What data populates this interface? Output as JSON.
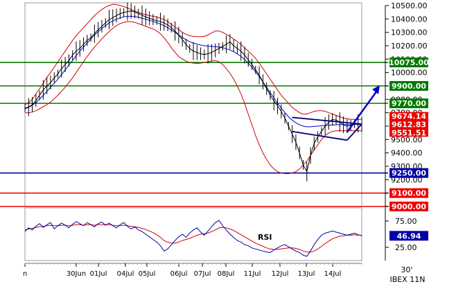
{
  "chart_data": [
    {
      "type": "line",
      "title": "",
      "subtitle": "",
      "instrument_caption": "IBEX 11N",
      "timeframe_caption": "30'",
      "ylim": [
        9000,
        10500
      ],
      "y_ticks": [
        "10500.00",
        "10400.00",
        "10300.00",
        "10200.00",
        "10100.00",
        "10000.00",
        "9900.00",
        "9800.00",
        "9700.00",
        "9600.00",
        "9500.00",
        "9400.00",
        "9300.00",
        "9200.00",
        "9100.00",
        "9000.00"
      ],
      "x_ticks": [
        "n",
        "30Jun",
        "01Jul",
        "04Jul",
        "05Jul",
        "06Jul",
        "07Jul",
        "08Jul",
        "11Jul",
        "12Jul",
        "13Jul",
        "14Jul"
      ],
      "price": [
        9735,
        9742,
        9760,
        9790,
        9830,
        9870,
        9900,
        9925,
        9960,
        9990,
        10030,
        10060,
        10090,
        10130,
        10160,
        10180,
        10210,
        10240,
        10260,
        10290,
        10320,
        10345,
        10370,
        10395,
        10410,
        10425,
        10440,
        10448,
        10455,
        10460,
        10452,
        10440,
        10428,
        10415,
        10405,
        10395,
        10388,
        10380,
        10370,
        10355,
        10335,
        10310,
        10280,
        10245,
        10210,
        10180,
        10160,
        10150,
        10140,
        10135,
        10140,
        10150,
        10165,
        10180,
        10195,
        10210,
        10230,
        10200,
        10180,
        10160,
        10130,
        10095,
        10060,
        10020,
        9980,
        9930,
        9880,
        9830,
        9790,
        9750,
        9710,
        9660,
        9600,
        9540,
        9480,
        9400,
        9310,
        9260,
        9380,
        9470,
        9520,
        9560,
        9600,
        9630,
        9650,
        9645,
        9630,
        9610,
        9600,
        9605,
        9615,
        9620,
        9612
      ],
      "upper_band": [
        9760,
        9775,
        9800,
        9840,
        9880,
        9920,
        9965,
        10000,
        10040,
        10080,
        10120,
        10160,
        10200,
        10240,
        10275,
        10305,
        10335,
        10365,
        10395,
        10425,
        10450,
        10470,
        10488,
        10500,
        10510,
        10508,
        10500,
        10492,
        10482,
        10470,
        10458,
        10448,
        10440,
        10432,
        10425,
        10420,
        10415,
        10405,
        10395,
        10380,
        10360,
        10340,
        10320,
        10300,
        10285,
        10275,
        10270,
        10268,
        10268,
        10270,
        10280,
        10295,
        10310,
        10310,
        10300,
        10285,
        10270,
        10250,
        10230,
        10210,
        10185,
        10160,
        10135,
        10105,
        10070,
        10030,
        9990,
        9950,
        9910,
        9870,
        9830,
        9800,
        9770,
        9740,
        9720,
        9700,
        9690,
        9690,
        9700,
        9710,
        9715,
        9715,
        9710,
        9700,
        9690,
        9680,
        9670,
        9660,
        9655,
        9650,
        9650,
        9650,
        9650
      ],
      "lower_band": [
        9700,
        9700,
        9705,
        9715,
        9730,
        9745,
        9760,
        9780,
        9805,
        9830,
        9860,
        9890,
        9925,
        9960,
        10000,
        10040,
        10080,
        10120,
        10155,
        10190,
        10220,
        10250,
        10280,
        10305,
        10330,
        10350,
        10365,
        10375,
        10380,
        10380,
        10375,
        10365,
        10355,
        10345,
        10335,
        10325,
        10310,
        10290,
        10260,
        10225,
        10185,
        10150,
        10120,
        10100,
        10085,
        10075,
        10070,
        10068,
        10070,
        10075,
        10080,
        10085,
        10090,
        10080,
        10060,
        10030,
        9995,
        9950,
        9900,
        9840,
        9770,
        9690,
        9610,
        9530,
        9460,
        9400,
        9350,
        9310,
        9280,
        9260,
        9250,
        9245,
        9245,
        9250,
        9260,
        9280,
        9310,
        9340,
        9380,
        9420,
        9460,
        9500,
        9530,
        9550,
        9560,
        9565,
        9565,
        9565,
        9565,
        9565,
        9565,
        9565,
        9565
      ],
      "moving_average": [
        9730,
        9740,
        9755,
        9775,
        9800,
        9830,
        9860,
        9890,
        9920,
        9950,
        9985,
        10020,
        10055,
        10090,
        10125,
        10160,
        10190,
        10220,
        10250,
        10280,
        10305,
        10330,
        10350,
        10370,
        10385,
        10398,
        10408,
        10415,
        10420,
        10420,
        10418,
        10412,
        10405,
        10398,
        10390,
        10382,
        10372,
        10362,
        10350,
        10335,
        10318,
        10300,
        10280,
        10262,
        10245,
        10230,
        10220,
        10212,
        10205,
        10200,
        10197,
        10195,
        10193,
        10190,
        10185,
        10178,
        10168,
        10155,
        10140,
        10120,
        10098,
        10070,
        10040,
        10005,
        9970,
        9930,
        9890,
        9850,
        9810,
        9770,
        9735,
        9700,
        9670,
        9645,
        9625,
        9610,
        9600,
        9595,
        9595,
        9598,
        9600,
        9602,
        9604,
        9606,
        9608,
        9610,
        9611,
        9612,
        9612,
        9612,
        9612,
        9612,
        9612
      ],
      "horizontal_levels": [
        {
          "value": 10075,
          "label": "10075.00",
          "color": "#007a00"
        },
        {
          "value": 9900,
          "label": "9900.00",
          "color": "#007a00"
        },
        {
          "value": 9770,
          "label": "9770.00",
          "color": "#007a00"
        },
        {
          "value": 9250,
          "label": "9250.00",
          "color": "#0000aa"
        },
        {
          "value": 9100,
          "label": "9100.00",
          "color": "#ee0000"
        },
        {
          "value": 9000,
          "label": "9000.00",
          "color": "#ee0000"
        }
      ],
      "price_labels": [
        {
          "value": 9674.14,
          "label": "9674.14",
          "color": "#ee0000"
        },
        {
          "value": 9612.83,
          "label": "9612.83",
          "color": "#ee0000"
        },
        {
          "value": 9551.51,
          "label": "9551.51",
          "color": "#ee0000"
        }
      ],
      "colors": {
        "price": "#000000",
        "bands": "#cc0000",
        "average": "#0000cc",
        "channel": "#00007a",
        "arrow": "#0000cc"
      }
    },
    {
      "type": "line",
      "title": "",
      "annotation": "RSI",
      "ylim": [
        0,
        100
      ],
      "y_ticks": [
        "75.00",
        "25.00"
      ],
      "current_label": "46.94",
      "current_value": 46.94,
      "rsi": [
        55,
        62,
        58,
        65,
        70,
        63,
        68,
        72,
        60,
        66,
        71,
        67,
        62,
        69,
        74,
        70,
        66,
        72,
        68,
        64,
        70,
        73,
        67,
        71,
        66,
        62,
        68,
        72,
        65,
        60,
        64,
        58,
        55,
        50,
        45,
        40,
        35,
        28,
        18,
        22,
        30,
        38,
        45,
        50,
        44,
        52,
        58,
        62,
        54,
        48,
        56,
        64,
        72,
        76,
        66,
        58,
        50,
        44,
        38,
        35,
        30,
        28,
        24,
        22,
        20,
        18,
        16,
        15,
        20,
        24,
        28,
        30,
        26,
        22,
        18,
        15,
        10,
        8,
        18,
        30,
        40,
        48,
        52,
        54,
        56,
        54,
        52,
        50,
        48,
        50,
        52,
        49,
        47
      ],
      "signal": [
        58,
        60,
        61,
        63,
        64,
        65,
        66,
        67,
        66,
        66,
        67,
        67,
        66,
        67,
        68,
        68,
        67,
        68,
        68,
        67,
        68,
        68,
        68,
        68,
        67,
        66,
        66,
        67,
        66,
        65,
        64,
        63,
        61,
        59,
        56,
        53,
        49,
        44,
        38,
        35,
        33,
        33,
        35,
        38,
        40,
        42,
        45,
        48,
        50,
        51,
        52,
        55,
        58,
        62,
        63,
        62,
        60,
        57,
        53,
        49,
        45,
        41,
        37,
        33,
        30,
        27,
        24,
        22,
        21,
        21,
        22,
        23,
        24,
        24,
        23,
        21,
        18,
        16,
        16,
        18,
        22,
        27,
        32,
        37,
        41,
        44,
        46,
        47,
        48,
        48,
        49,
        48,
        48
      ]
    }
  ]
}
